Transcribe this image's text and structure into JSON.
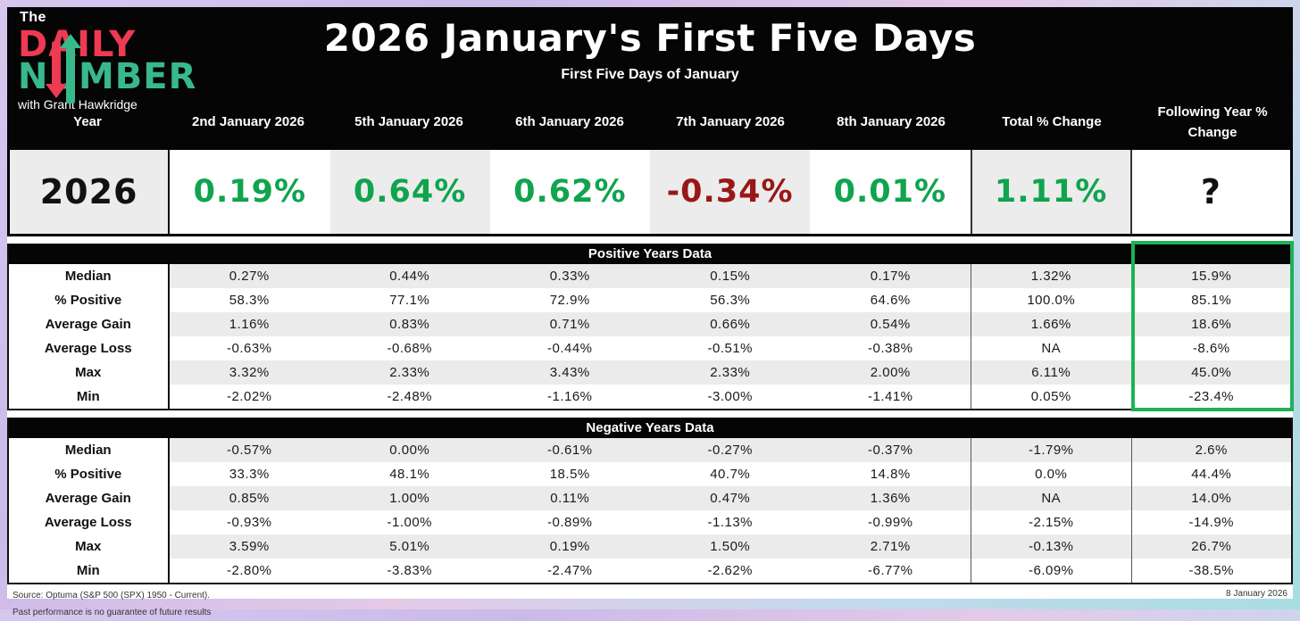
{
  "colors": {
    "green": "#0fa44d",
    "dark_red": "#9a1717",
    "black_value": "#111111",
    "logo_red": "#ee3a52",
    "logo_green": "#38b98b",
    "highlight_green": "#1eb157",
    "stripe_gray": "#ebebeb"
  },
  "logo": {
    "the": "The",
    "word1": "DAILY",
    "word2": "NUMBER",
    "tagline": "with Grant Hawkridge"
  },
  "header": {
    "title": "2026 January's First Five Days",
    "subtitle": "First Five Days of January"
  },
  "chart_data": {
    "type": "table",
    "title": "2026 January's First Five Days",
    "columns": [
      "Year",
      "2nd January 2026",
      "5th January 2026",
      "6th January 2026",
      "7th January 2026",
      "8th January 2026",
      "Total % Change",
      "Following Year % Change"
    ],
    "current_row": {
      "year": "2026",
      "cells": [
        {
          "text": "0.19%",
          "tone": "green"
        },
        {
          "text": "0.64%",
          "tone": "green"
        },
        {
          "text": "0.62%",
          "tone": "green"
        },
        {
          "text": "-0.34%",
          "tone": "red"
        },
        {
          "text": "0.01%",
          "tone": "green"
        },
        {
          "text": "1.11%",
          "tone": "green"
        },
        {
          "text": "?",
          "tone": "black"
        }
      ]
    },
    "sections": [
      {
        "title": "Positive Years Data",
        "highlight_last_column": true,
        "rows": [
          {
            "label": "Median",
            "values": [
              "0.27%",
              "0.44%",
              "0.33%",
              "0.15%",
              "0.17%",
              "1.32%",
              "15.9%"
            ]
          },
          {
            "label": "% Positive",
            "values": [
              "58.3%",
              "77.1%",
              "72.9%",
              "56.3%",
              "64.6%",
              "100.0%",
              "85.1%"
            ]
          },
          {
            "label": "Average Gain",
            "values": [
              "1.16%",
              "0.83%",
              "0.71%",
              "0.66%",
              "0.54%",
              "1.66%",
              "18.6%"
            ]
          },
          {
            "label": "Average Loss",
            "values": [
              "-0.63%",
              "-0.68%",
              "-0.44%",
              "-0.51%",
              "-0.38%",
              "NA",
              "-8.6%"
            ]
          },
          {
            "label": "Max",
            "values": [
              "3.32%",
              "2.33%",
              "3.43%",
              "2.33%",
              "2.00%",
              "6.11%",
              "45.0%"
            ]
          },
          {
            "label": "Min",
            "values": [
              "-2.02%",
              "-2.48%",
              "-1.16%",
              "-3.00%",
              "-1.41%",
              "0.05%",
              "-23.4%"
            ]
          }
        ]
      },
      {
        "title": "Negative Years Data",
        "highlight_last_column": false,
        "rows": [
          {
            "label": "Median",
            "values": [
              "-0.57%",
              "0.00%",
              "-0.61%",
              "-0.27%",
              "-0.37%",
              "-1.79%",
              "2.6%"
            ]
          },
          {
            "label": "% Positive",
            "values": [
              "33.3%",
              "48.1%",
              "18.5%",
              "40.7%",
              "14.8%",
              "0.0%",
              "44.4%"
            ]
          },
          {
            "label": "Average Gain",
            "values": [
              "0.85%",
              "1.00%",
              "0.11%",
              "0.47%",
              "1.36%",
              "NA",
              "14.0%"
            ]
          },
          {
            "label": "Average Loss",
            "values": [
              "-0.93%",
              "-1.00%",
              "-0.89%",
              "-1.13%",
              "-0.99%",
              "-2.15%",
              "-14.9%"
            ]
          },
          {
            "label": "Max",
            "values": [
              "3.59%",
              "5.01%",
              "0.19%",
              "1.50%",
              "2.71%",
              "-0.13%",
              "26.7%"
            ]
          },
          {
            "label": "Min",
            "values": [
              "-2.80%",
              "-3.83%",
              "-2.47%",
              "-2.62%",
              "-6.77%",
              "-6.09%",
              "-38.5%"
            ]
          }
        ]
      }
    ]
  },
  "footer": {
    "source_line1": "Source: Optuma (S&P 500 (SPX) 1950 - Current).",
    "source_line2": "Past performance is no guarantee of future results",
    "date": "8 January 2026"
  }
}
